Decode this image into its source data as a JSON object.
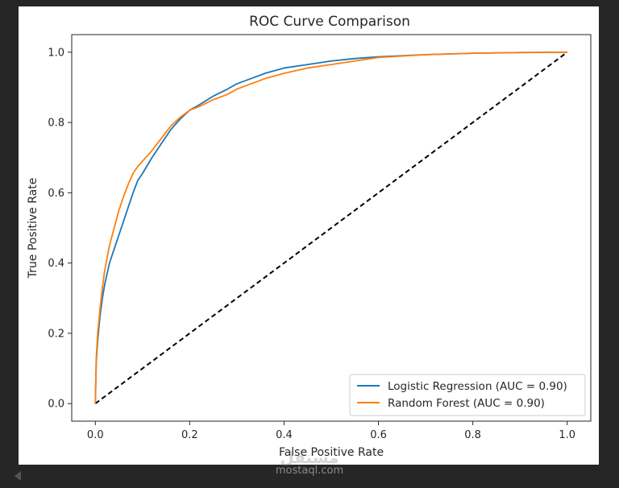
{
  "chart_data": {
    "type": "line",
    "title": "ROC Curve Comparison",
    "xlabel": "False Positive Rate",
    "ylabel": "True Positive Rate",
    "xlim": [
      -0.05,
      1.05
    ],
    "ylim": [
      -0.05,
      1.05
    ],
    "xticks": [
      0.0,
      0.2,
      0.4,
      0.6,
      0.8,
      1.0
    ],
    "yticks": [
      0.0,
      0.2,
      0.4,
      0.6,
      0.8,
      1.0
    ],
    "xtick_labels": [
      "0.0",
      "0.2",
      "0.4",
      "0.6",
      "0.8",
      "1.0"
    ],
    "ytick_labels": [
      "0.0",
      "0.2",
      "0.4",
      "0.6",
      "0.8",
      "1.0"
    ],
    "grid": false,
    "legend_position": "lower-right",
    "series": [
      {
        "name": "Logistic Regression (AUC = 0.90)",
        "color": "#1f77b4",
        "x": [
          0.0,
          0.002,
          0.005,
          0.01,
          0.015,
          0.02,
          0.03,
          0.04,
          0.05,
          0.06,
          0.07,
          0.08,
          0.09,
          0.1,
          0.12,
          0.14,
          0.16,
          0.18,
          0.2,
          0.22,
          0.25,
          0.28,
          0.3,
          0.33,
          0.36,
          0.4,
          0.45,
          0.5,
          0.55,
          0.6,
          0.7,
          0.8,
          0.9,
          1.0
        ],
        "y": [
          0.0,
          0.12,
          0.18,
          0.25,
          0.3,
          0.34,
          0.4,
          0.44,
          0.48,
          0.52,
          0.56,
          0.6,
          0.635,
          0.655,
          0.7,
          0.74,
          0.78,
          0.81,
          0.835,
          0.85,
          0.875,
          0.895,
          0.91,
          0.925,
          0.94,
          0.955,
          0.965,
          0.975,
          0.982,
          0.987,
          0.993,
          0.997,
          0.999,
          1.0
        ]
      },
      {
        "name": "Random Forest (AUC = 0.90)",
        "color": "#ff7f0e",
        "x": [
          0.0,
          0.002,
          0.005,
          0.01,
          0.015,
          0.02,
          0.03,
          0.04,
          0.05,
          0.06,
          0.07,
          0.08,
          0.09,
          0.1,
          0.12,
          0.14,
          0.16,
          0.18,
          0.2,
          0.22,
          0.25,
          0.28,
          0.3,
          0.33,
          0.36,
          0.4,
          0.45,
          0.5,
          0.55,
          0.6,
          0.7,
          0.8,
          0.9,
          1.0
        ],
        "y": [
          0.0,
          0.13,
          0.2,
          0.27,
          0.33,
          0.38,
          0.45,
          0.5,
          0.55,
          0.59,
          0.625,
          0.655,
          0.675,
          0.69,
          0.72,
          0.755,
          0.79,
          0.815,
          0.835,
          0.845,
          0.865,
          0.88,
          0.895,
          0.91,
          0.925,
          0.94,
          0.955,
          0.965,
          0.975,
          0.985,
          0.993,
          0.997,
          0.999,
          1.0
        ]
      },
      {
        "name": "",
        "color": "#000000",
        "style": "dashed",
        "x": [
          0.0,
          1.0
        ],
        "y": [
          0.0,
          1.0
        ]
      }
    ]
  },
  "watermark": {
    "logo": "مستقل",
    "site": "mostaql.com"
  },
  "colors": {
    "background": "#262626",
    "figure": "#ffffff",
    "axes": "#262626"
  }
}
